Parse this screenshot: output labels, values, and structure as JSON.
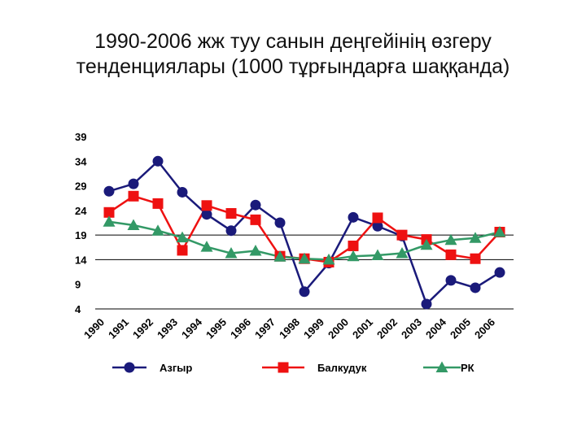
{
  "page": {
    "title_line1": "1990-2006 жж туу санын деңгейінің өзгеру",
    "title_line2": "тенденциялары (1000 тұрғындарға шаққанда)"
  },
  "chart_data": {
    "type": "line",
    "title": "1990-2006 жж туу санын деңгейінің өзгеру тенденциялары (1000 тұрғындарға шаққанда)",
    "xlabel": "",
    "ylabel": "",
    "categories": [
      "1990",
      "1991",
      "1992",
      "1993",
      "1994",
      "1995",
      "1996",
      "1997",
      "1998",
      "1999",
      "2000",
      "2001",
      "2002",
      "2003",
      "2004",
      "2005",
      "2006"
    ],
    "yticks": [
      4,
      9,
      14,
      19,
      24,
      29,
      34,
      39
    ],
    "ylim": [
      4,
      39
    ],
    "grid": "horizontal lines at 4, 14 and 19",
    "legend_position": "bottom",
    "series": [
      {
        "name": "Азгыр",
        "color": "#1a1a7a",
        "marker": "circle",
        "values": [
          27.9,
          29.4,
          34.0,
          27.7,
          23.2,
          19.9,
          25.1,
          21.5,
          7.5,
          13.3,
          22.6,
          20.8,
          18.8,
          5.0,
          9.8,
          8.3,
          11.4
        ]
      },
      {
        "name": "Балкудук",
        "color": "#ee1111",
        "marker": "square",
        "values": [
          23.6,
          26.9,
          25.4,
          15.9,
          25.0,
          23.4,
          22.1,
          14.7,
          14.2,
          13.5,
          16.8,
          22.5,
          19.0,
          18.1,
          15.0,
          14.2,
          19.6
        ]
      },
      {
        "name": "РК",
        "color": "#339966",
        "marker": "triangle",
        "values": [
          21.7,
          21.0,
          19.9,
          18.5,
          16.6,
          15.3,
          15.8,
          14.6,
          14.2,
          14.0,
          14.7,
          14.9,
          15.3,
          17.0,
          18.0,
          18.4,
          19.6
        ]
      }
    ]
  }
}
